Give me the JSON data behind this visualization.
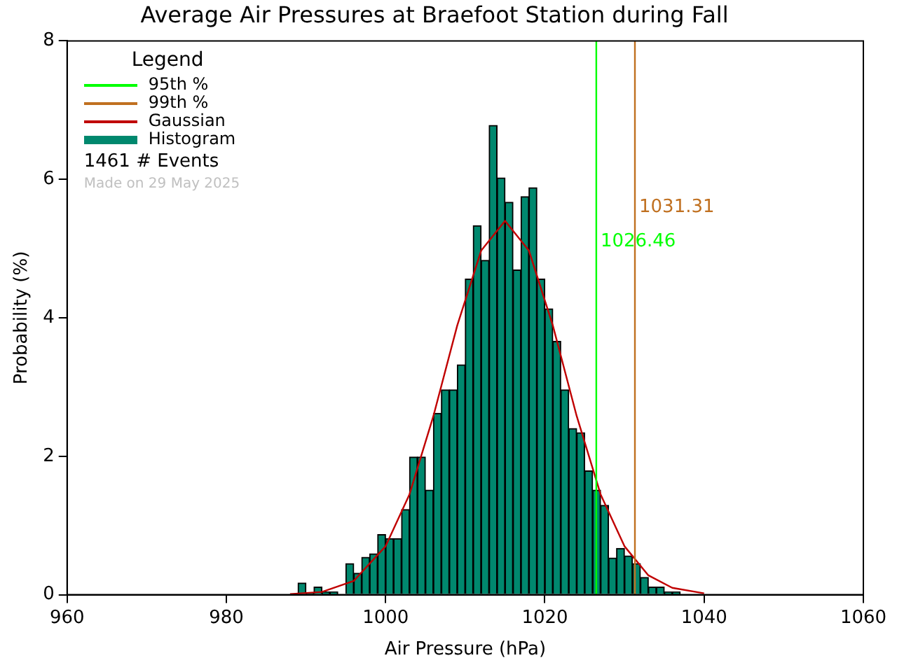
{
  "chart_data": {
    "type": "histogram",
    "title": "Average Air Pressures at Braefoot Station during Fall",
    "xlabel": "Air Pressure (hPa)",
    "ylabel": "Probability (%)",
    "bins": [
      989,
      990,
      991,
      992,
      993,
      994,
      995,
      996,
      997,
      998,
      999,
      1000,
      1001,
      1002,
      1003,
      1004,
      1005,
      1006,
      1007,
      1008,
      1009,
      1010,
      1011,
      1012,
      1013,
      1014,
      1015,
      1016,
      1017,
      1018,
      1019,
      1020,
      1021,
      1022,
      1023,
      1024,
      1025,
      1026,
      1027,
      1028,
      1029,
      1030,
      1031,
      1032,
      1033,
      1034,
      1035,
      1036,
      1037
    ],
    "series": [
      {
        "name": "95th %",
        "type": "line",
        "color": "#00ff00",
        "x": [
          1026.46,
          1026.46
        ],
        "values": [
          0,
          8
        ]
      },
      {
        "name": "99th %",
        "type": "line",
        "color": "#c07020",
        "x": [
          1031.31,
          1031.31
        ],
        "values": [
          0,
          8
        ]
      },
      {
        "name": "Gaussian",
        "type": "line",
        "color": "#c00000",
        "x": [
          988,
          992,
          996,
          1000,
          1003,
          1006,
          1009,
          1012,
          1015,
          1018,
          1021,
          1024,
          1027,
          1030,
          1033,
          1036,
          1040
        ],
        "values": [
          0.01,
          0.04,
          0.2,
          0.7,
          1.45,
          2.58,
          3.89,
          4.97,
          5.4,
          4.97,
          3.89,
          2.58,
          1.45,
          0.7,
          0.28,
          0.1,
          0.02
        ]
      },
      {
        "name": "Histogram",
        "color": "#00886e",
        "values": [
          0.17,
          0.03,
          0.11,
          0.04,
          0.04,
          0,
          0.45,
          0.31,
          0.54,
          0.59,
          0.87,
          0.81,
          0.81,
          1.23,
          1.99,
          1.99,
          1.51,
          2.62,
          2.96,
          2.96,
          3.32,
          4.56,
          5.33,
          4.83,
          6.78,
          6.02,
          5.67,
          4.69,
          5.75,
          5.88,
          4.56,
          4.13,
          3.66,
          2.96,
          2.4,
          2.34,
          1.79,
          1.51,
          1.29,
          0.53,
          0.67,
          0.56,
          0.45,
          0.25,
          0.11,
          0.11,
          0.04,
          0.04
        ]
      }
    ],
    "annotations": [
      "1461  # Events",
      "Made on 29 May 2025",
      {
        "text": "1026.46",
        "x": 1026.46,
        "y": 5.1
      },
      {
        "text": "1031.31",
        "x": 1031.31,
        "y": 5.6
      }
    ],
    "legend_title": "Legend",
    "legend": "top left",
    "grid": false,
    "xlim": [
      960,
      1060
    ],
    "xticks": [
      960,
      980,
      1000,
      1020,
      1040,
      1060
    ],
    "ylim": [
      0,
      8
    ],
    "yticks": [
      0,
      2,
      4,
      6,
      8
    ]
  }
}
